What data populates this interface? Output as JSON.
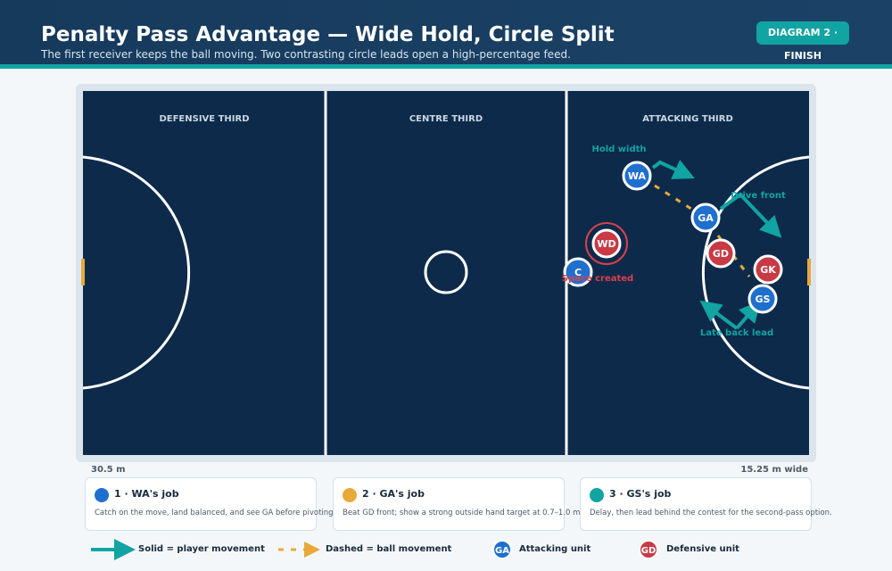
{
  "header": {
    "title": "Penalty Pass Advantage — Wide Hold, Circle Split",
    "subtitle": "The first receiver keeps the ball moving. Two contrasting circle leads open a high-percentage feed.",
    "badge": "DIAGRAM 2 · FINISH"
  },
  "court": {
    "thirds": [
      "DEFENSIVE THIRD",
      "CENTRE THIRD",
      "ATTACKING THIRD"
    ],
    "length": "30.5 m",
    "width": "15.25 m wide"
  },
  "players": {
    "attack": [
      "WA",
      "GA",
      "GS",
      "C"
    ],
    "defence": [
      "WD",
      "GD",
      "GK"
    ]
  },
  "annotations": [
    "Hold width",
    "Drive front",
    "Space created",
    "Late back lead"
  ],
  "cards": [
    {
      "title": "1 · WA's job",
      "text": "Catch on the move, land balanced, and see GA before pivoting"
    },
    {
      "title": "2 · GA's job",
      "text": "Beat GD front; show a strong outside hand target at 0.7–1.0 m"
    },
    {
      "title": "3 · GS's job",
      "text": "Delay, then lead behind the contest for the second-pass option."
    }
  ],
  "legend": {
    "solid": "Solid = player movement",
    "dashed": "Dashed = ball movement",
    "attack_badge": "GA",
    "attack": "Attacking unit",
    "defence_badge": "GD",
    "defence": "Defensive unit"
  }
}
